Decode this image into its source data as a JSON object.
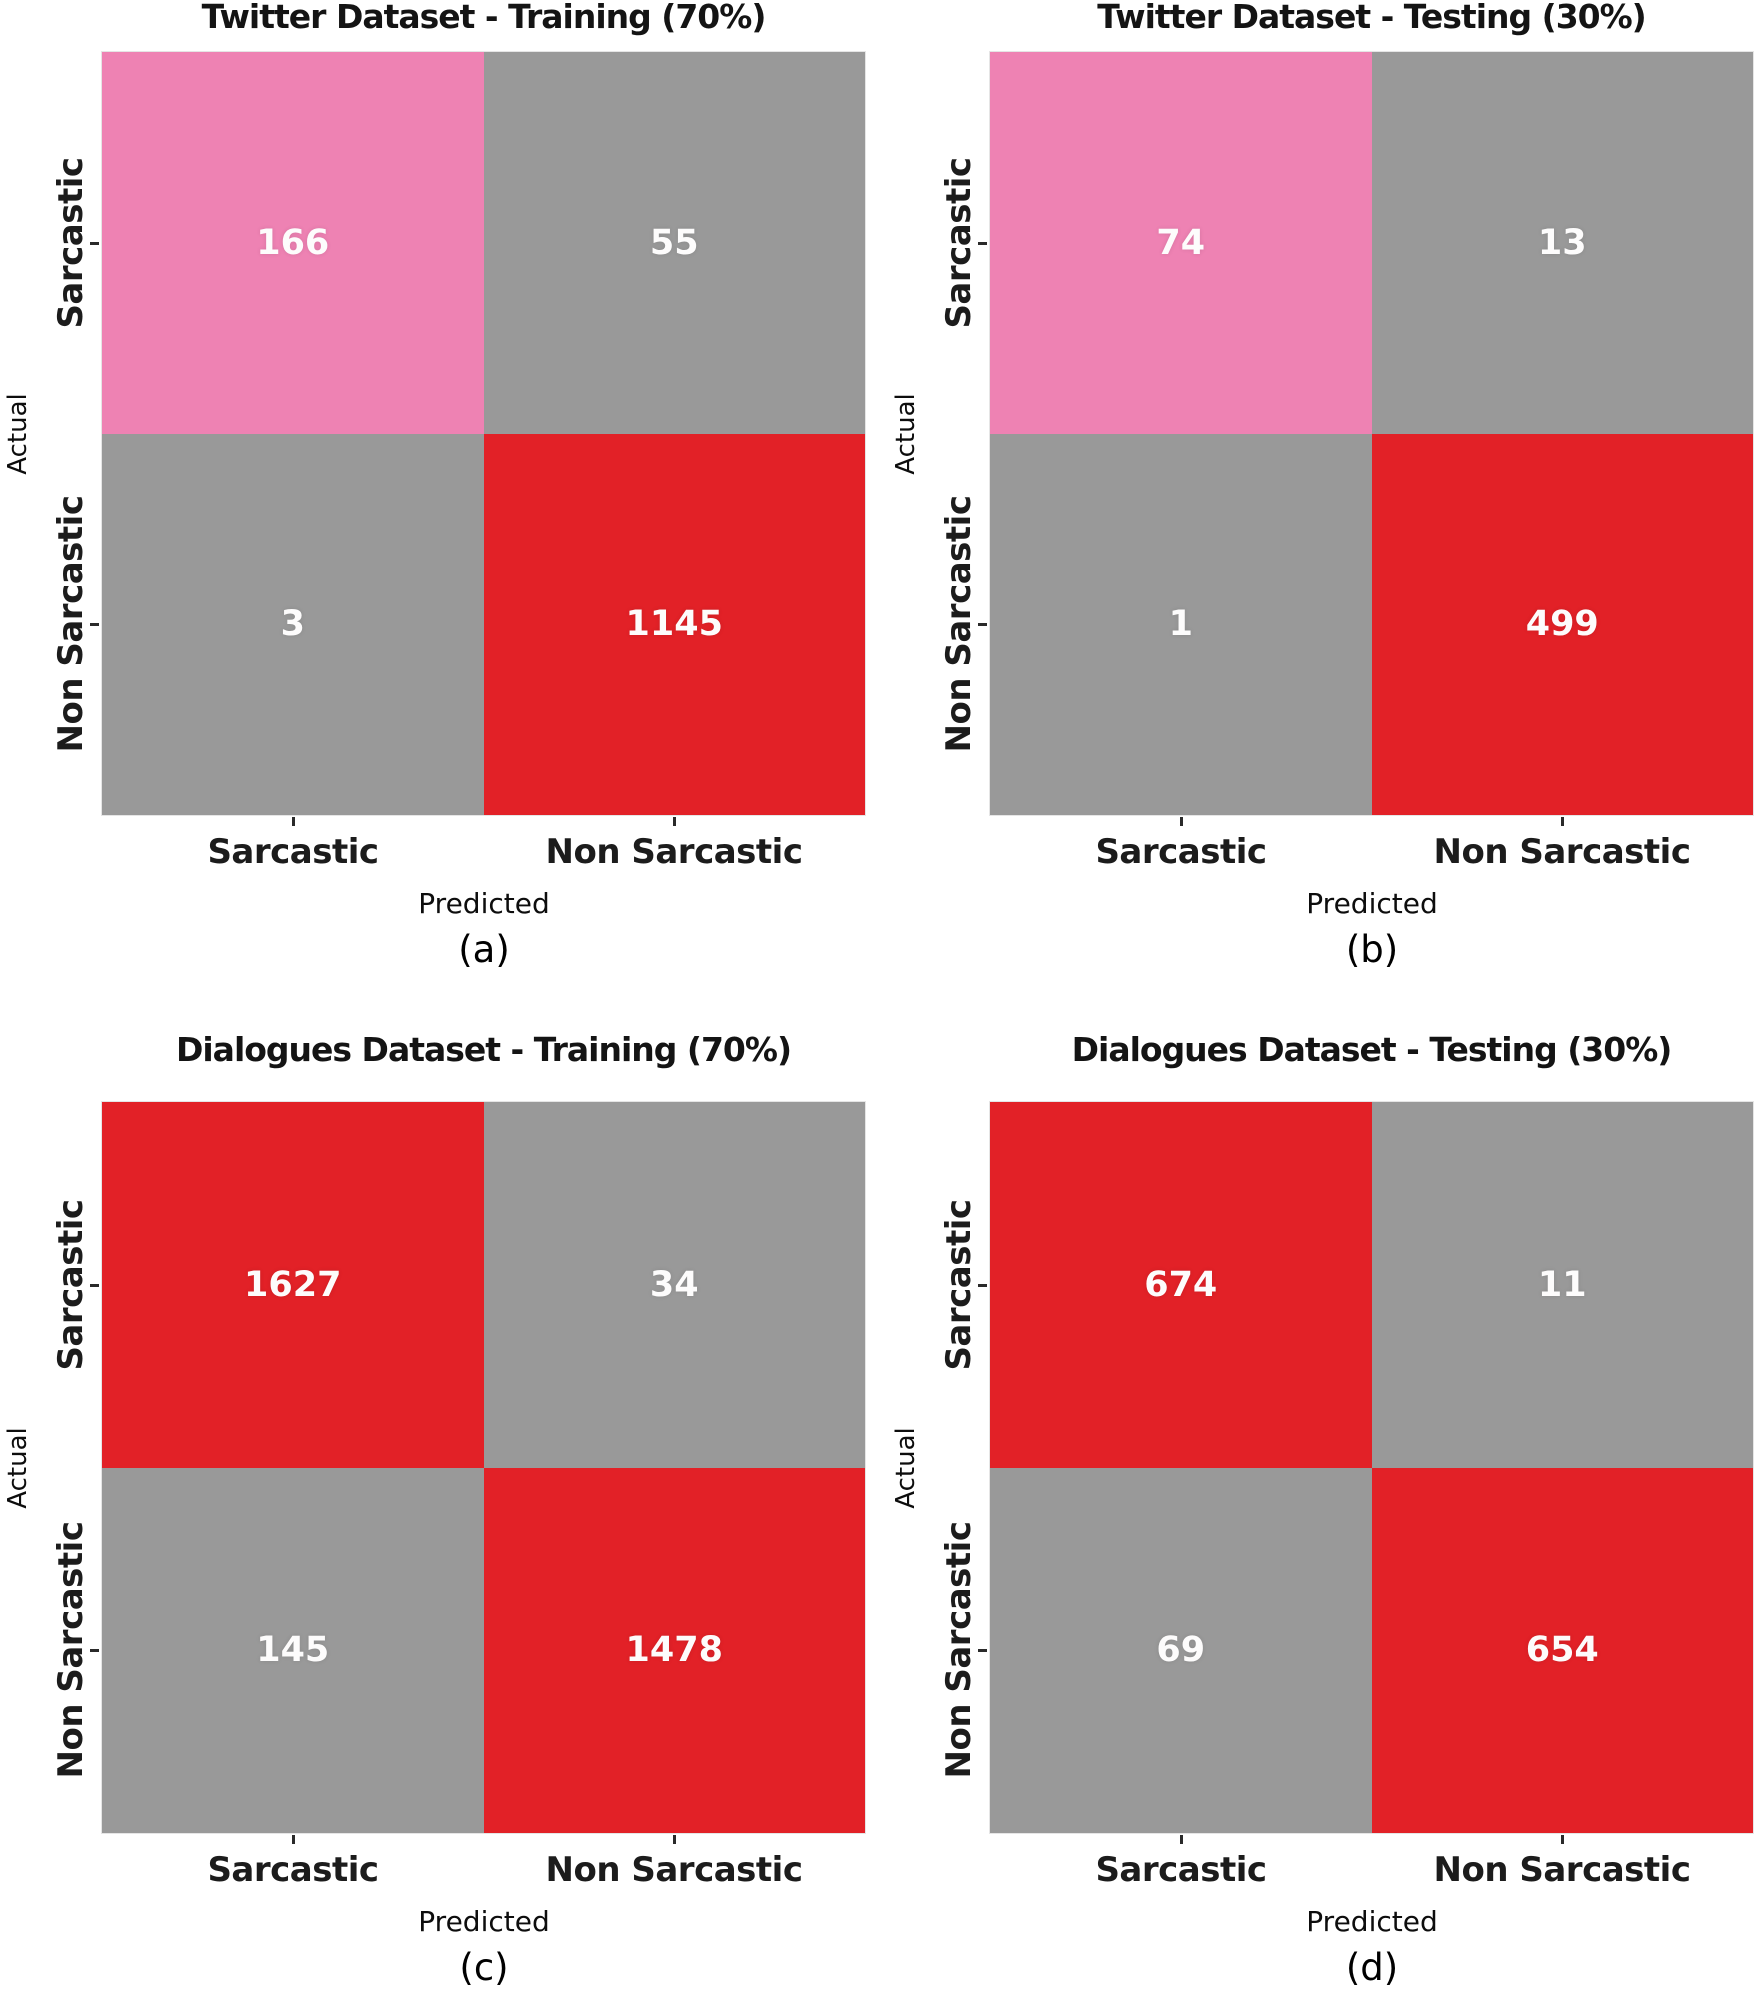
{
  "palette": {
    "pink": "#ee82b3",
    "red": "#e22127",
    "gray": "#999999",
    "cell_text": "#fdfcfc",
    "label_text": "#1c1c1c"
  },
  "chart_data": [
    {
      "type": "heatmap",
      "panel_label": "(a)",
      "title": "Twitter Dataset - Training (70%)",
      "xlabel": "Predicted",
      "ylabel": "Actual",
      "x_categories": [
        "Sarcastic",
        "Non Sarcastic"
      ],
      "y_categories": [
        "Sarcastic",
        "Non Sarcastic"
      ],
      "values": [
        [
          166,
          55
        ],
        [
          3,
          1145
        ]
      ],
      "cell_colors": [
        [
          "pink",
          "gray"
        ],
        [
          "gray",
          "red"
        ]
      ]
    },
    {
      "type": "heatmap",
      "panel_label": "(b)",
      "title": "Twitter Dataset - Testing (30%)",
      "xlabel": "Predicted",
      "ylabel": "Actual",
      "x_categories": [
        "Sarcastic",
        "Non Sarcastic"
      ],
      "y_categories": [
        "Sarcastic",
        "Non Sarcastic"
      ],
      "values": [
        [
          74,
          13
        ],
        [
          1,
          499
        ]
      ],
      "cell_colors": [
        [
          "pink",
          "gray"
        ],
        [
          "gray",
          "red"
        ]
      ]
    },
    {
      "type": "heatmap",
      "panel_label": "(c)",
      "title": "Dialogues Dataset - Training (70%)",
      "xlabel": "Predicted",
      "ylabel": "Actual",
      "x_categories": [
        "Sarcastic",
        "Non Sarcastic"
      ],
      "y_categories": [
        "Sarcastic",
        "Non Sarcastic"
      ],
      "values": [
        [
          1627,
          34
        ],
        [
          145,
          1478
        ]
      ],
      "cell_colors": [
        [
          "red",
          "gray"
        ],
        [
          "gray",
          "red"
        ]
      ]
    },
    {
      "type": "heatmap",
      "panel_label": "(d)",
      "title": "Dialogues Dataset - Testing (30%)",
      "xlabel": "Predicted",
      "ylabel": "Actual",
      "x_categories": [
        "Sarcastic",
        "Non Sarcastic"
      ],
      "y_categories": [
        "Sarcastic",
        "Non Sarcastic"
      ],
      "values": [
        [
          674,
          11
        ],
        [
          69,
          654
        ]
      ],
      "cell_colors": [
        [
          "red",
          "gray"
        ],
        [
          "gray",
          "red"
        ]
      ]
    }
  ]
}
